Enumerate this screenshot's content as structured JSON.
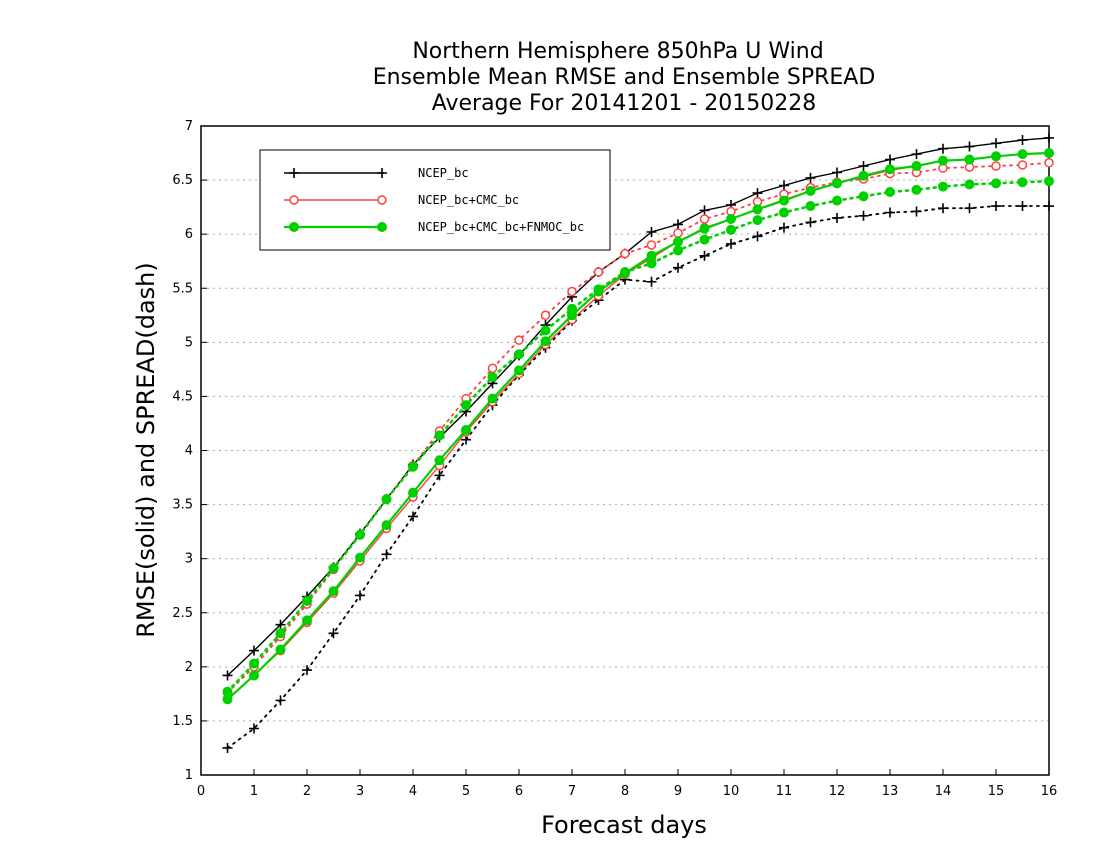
{
  "chart_data": {
    "type": "line",
    "title_lines": [
      "Northern Hemisphere 850hPa U Wind",
      "Ensemble Mean RMSE and Ensemble SPREAD",
      "Average For 20141201 - 20150228"
    ],
    "xlabel": "Forecast days",
    "ylabel": "RMSE(solid) and SPREAD(dash)",
    "xlim": [
      0,
      16
    ],
    "ylim": [
      1,
      7
    ],
    "x_ticks": [
      "0",
      "1",
      "2",
      "3",
      "4",
      "5",
      "6",
      "7",
      "8",
      "9",
      "10",
      "11",
      "12",
      "13",
      "14",
      "15",
      "16"
    ],
    "y_ticks": [
      "1",
      "1.5",
      "2",
      "2.5",
      "3",
      "3.5",
      "4",
      "4.5",
      "5",
      "5.5",
      "6",
      "6.5",
      "7"
    ],
    "grid": "horizontal dotted",
    "legend_position": "top-left",
    "x": [
      0.5,
      1,
      1.5,
      2,
      2.5,
      3,
      3.5,
      4,
      4.5,
      5,
      5.5,
      6,
      6.5,
      7,
      7.5,
      8,
      8.5,
      9,
      9.5,
      10,
      10.5,
      11,
      11.5,
      12,
      12.5,
      13,
      13.5,
      14,
      14.5,
      15,
      15.5,
      16
    ],
    "series": [
      {
        "name": "NCEP_bc",
        "color": "#000000",
        "marker": "plus",
        "rmse": [
          1.92,
          2.15,
          2.39,
          2.65,
          2.92,
          3.23,
          3.55,
          3.87,
          4.12,
          4.36,
          4.62,
          4.88,
          5.16,
          5.42,
          5.65,
          5.82,
          6.02,
          6.09,
          6.22,
          6.27,
          6.38,
          6.45,
          6.52,
          6.57,
          6.63,
          6.69,
          6.74,
          6.79,
          6.81,
          6.84,
          6.87,
          6.89
        ],
        "spread": [
          1.25,
          1.43,
          1.69,
          1.97,
          2.31,
          2.66,
          3.04,
          3.39,
          3.77,
          4.1,
          4.42,
          4.7,
          4.95,
          5.2,
          5.39,
          5.58,
          5.56,
          5.69,
          5.8,
          5.91,
          5.98,
          6.06,
          6.11,
          6.15,
          6.17,
          6.2,
          6.21,
          6.24,
          6.24,
          6.26,
          6.26,
          6.26
        ]
      },
      {
        "name": "NCEP_bc+CMC_bc",
        "color": "#ff4040",
        "marker": "open-circle",
        "rmse": [
          1.7,
          1.92,
          2.15,
          2.41,
          2.68,
          2.98,
          3.28,
          3.57,
          3.86,
          4.17,
          4.45,
          4.71,
          4.98,
          5.21,
          5.43,
          5.63,
          5.78,
          5.93,
          6.06,
          6.14,
          6.23,
          6.32,
          6.4,
          6.47,
          6.53,
          6.59,
          6.63,
          6.68,
          6.69,
          6.72,
          6.74,
          6.75
        ],
        "spread": [
          1.76,
          2.0,
          2.28,
          2.58,
          2.9,
          3.22,
          3.55,
          3.86,
          4.18,
          4.48,
          4.76,
          5.02,
          5.25,
          5.47,
          5.65,
          5.82,
          5.9,
          6.01,
          6.14,
          6.21,
          6.3,
          6.37,
          6.43,
          6.48,
          6.51,
          6.56,
          6.57,
          6.61,
          6.62,
          6.63,
          6.64,
          6.66
        ]
      },
      {
        "name": "NCEP_bc+CMC_bc+FNMOC_bc",
        "color": "#00d000",
        "marker": "filled-circle",
        "rmse": [
          1.7,
          1.92,
          2.16,
          2.43,
          2.7,
          3.01,
          3.31,
          3.61,
          3.91,
          4.19,
          4.48,
          4.74,
          5.01,
          5.25,
          5.47,
          5.64,
          5.8,
          5.93,
          6.05,
          6.14,
          6.23,
          6.31,
          6.4,
          6.47,
          6.54,
          6.6,
          6.63,
          6.68,
          6.69,
          6.72,
          6.74,
          6.75
        ],
        "spread": [
          1.77,
          2.03,
          2.31,
          2.61,
          2.91,
          3.22,
          3.55,
          3.85,
          4.14,
          4.42,
          4.68,
          4.89,
          5.11,
          5.31,
          5.49,
          5.65,
          5.73,
          5.85,
          5.95,
          6.04,
          6.13,
          6.2,
          6.26,
          6.31,
          6.35,
          6.39,
          6.41,
          6.44,
          6.46,
          6.47,
          6.48,
          6.49
        ]
      }
    ]
  }
}
